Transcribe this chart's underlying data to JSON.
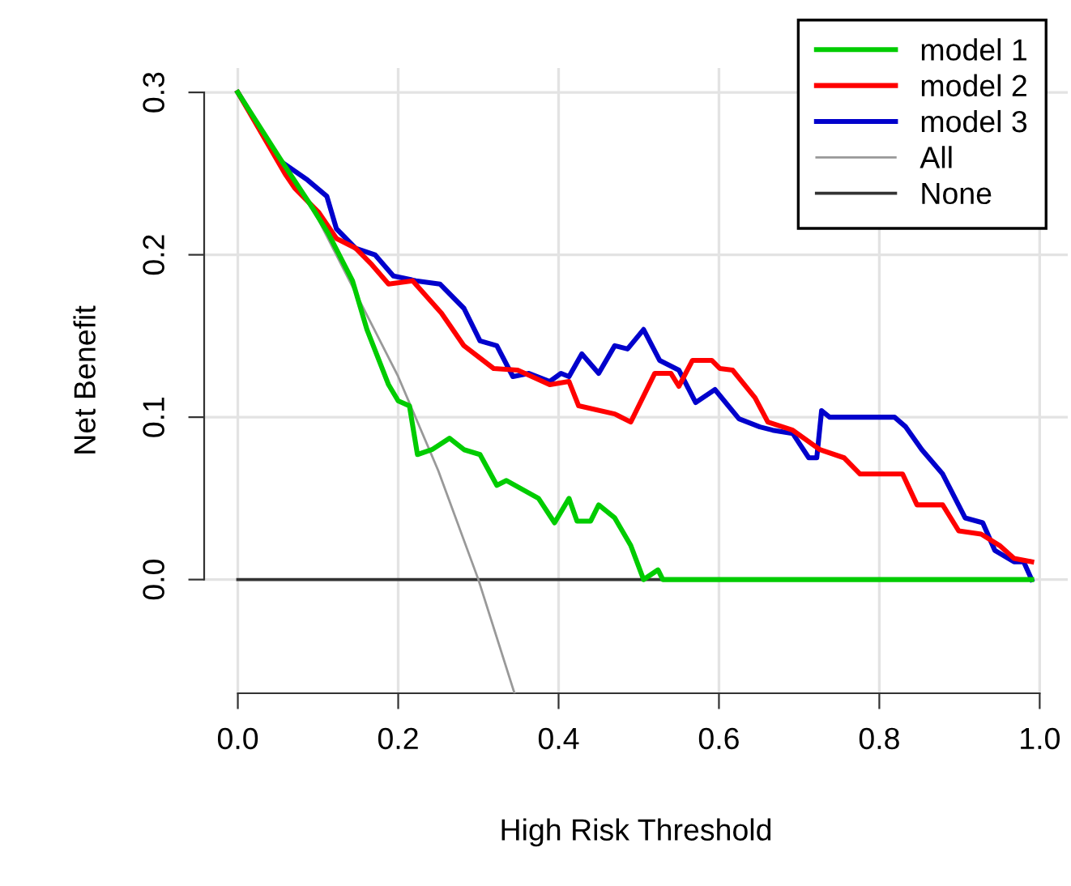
{
  "chart_data": {
    "type": "line",
    "xlabel": "High Risk Threshold",
    "ylabel": "Net Benefit",
    "xlim": [
      -0.042,
      1.035
    ],
    "ylim": [
      -0.07,
      0.315
    ],
    "xticks": [
      {
        "value": 0,
        "label": "0.0"
      },
      {
        "value": 0.2,
        "label": "0.2"
      },
      {
        "value": 0.4,
        "label": "0.4"
      },
      {
        "value": 0.6,
        "label": "0.6"
      },
      {
        "value": 0.8,
        "label": "0.8"
      },
      {
        "value": 1,
        "label": "1.0"
      }
    ],
    "yticks": [
      {
        "value": 0,
        "label": "0.0"
      },
      {
        "value": 0.1,
        "label": "0.1"
      },
      {
        "value": 0.2,
        "label": "0.2"
      },
      {
        "value": 0.3,
        "label": "0.3"
      }
    ],
    "grid": true,
    "legend": "top right",
    "marker": "none",
    "line_style": "solid",
    "series": [
      {
        "name": "model 1",
        "color": "#00cc00",
        "x": [
          0,
          0.053,
          0.093,
          0.113,
          0.143,
          0.161,
          0.188,
          0.2,
          0.214,
          0.224,
          0.242,
          0.264,
          0.282,
          0.302,
          0.323,
          0.335,
          0.375,
          0.395,
          0.413,
          0.423,
          0.44,
          0.45,
          0.47,
          0.49,
          0.506,
          0.524,
          0.53,
          0.99
        ],
        "values": [
          0.3,
          0.259,
          0.229,
          0.213,
          0.184,
          0.154,
          0.12,
          0.11,
          0.107,
          0.077,
          0.08,
          0.087,
          0.08,
          0.077,
          0.058,
          0.061,
          0.05,
          0.035,
          0.05,
          0.036,
          0.036,
          0.046,
          0.038,
          0.021,
          0,
          0.006,
          0,
          0
        ]
      },
      {
        "name": "model 2",
        "color": "#ff0000",
        "x": [
          0,
          0.06,
          0.071,
          0.101,
          0.123,
          0.147,
          0.167,
          0.188,
          0.218,
          0.254,
          0.282,
          0.319,
          0.349,
          0.389,
          0.413,
          0.425,
          0.47,
          0.49,
          0.52,
          0.54,
          0.55,
          0.567,
          0.591,
          0.601,
          0.617,
          0.645,
          0.661,
          0.692,
          0.726,
          0.756,
          0.776,
          0.829,
          0.847,
          0.879,
          0.899,
          0.927,
          0.95,
          0.968,
          0.99
        ],
        "values": [
          0.3,
          0.249,
          0.241,
          0.226,
          0.21,
          0.204,
          0.194,
          0.182,
          0.184,
          0.164,
          0.144,
          0.13,
          0.129,
          0.12,
          0.122,
          0.107,
          0.102,
          0.097,
          0.127,
          0.127,
          0.119,
          0.135,
          0.135,
          0.13,
          0.129,
          0.112,
          0.097,
          0.092,
          0.08,
          0.075,
          0.065,
          0.065,
          0.046,
          0.046,
          0.03,
          0.028,
          0.021,
          0.013,
          0.011
        ]
      },
      {
        "name": "model 3",
        "color": "#0000cc",
        "x": [
          0,
          0.026,
          0.052,
          0.087,
          0.111,
          0.123,
          0.147,
          0.171,
          0.194,
          0.222,
          0.252,
          0.282,
          0.302,
          0.323,
          0.343,
          0.363,
          0.389,
          0.403,
          0.413,
          0.429,
          0.45,
          0.47,
          0.486,
          0.506,
          0.526,
          0.55,
          0.571,
          0.595,
          0.625,
          0.651,
          0.667,
          0.692,
          0.712,
          0.722,
          0.728,
          0.738,
          0.819,
          0.833,
          0.853,
          0.879,
          0.907,
          0.929,
          0.944,
          0.968,
          0.98,
          0.99
        ],
        "values": [
          0.3,
          0.279,
          0.258,
          0.246,
          0.236,
          0.216,
          0.204,
          0.2,
          0.187,
          0.184,
          0.182,
          0.167,
          0.147,
          0.144,
          0.125,
          0.127,
          0.122,
          0.127,
          0.125,
          0.139,
          0.127,
          0.144,
          0.142,
          0.154,
          0.135,
          0.129,
          0.109,
          0.117,
          0.099,
          0.094,
          0.092,
          0.09,
          0.075,
          0.075,
          0.104,
          0.1,
          0.1,
          0.094,
          0.08,
          0.065,
          0.038,
          0.035,
          0.018,
          0.011,
          0.011,
          0
        ]
      },
      {
        "name": "All",
        "color": "#999999",
        "x": [
          0,
          0.1,
          0.2,
          0.25,
          0.3,
          0.345
        ],
        "values": [
          0.3,
          0.222,
          0.125,
          0.067,
          0,
          -0.07
        ]
      },
      {
        "name": "None",
        "color": "#333333",
        "x": [
          0,
          0.99
        ],
        "values": [
          0,
          0
        ]
      }
    ]
  }
}
